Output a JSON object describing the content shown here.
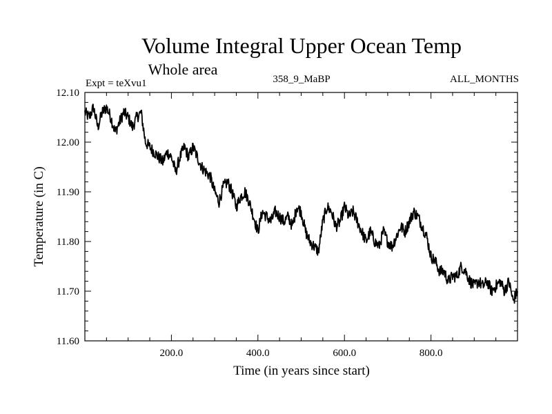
{
  "chart_data": {
    "type": "line",
    "title": "Volume Integral Upper Ocean Temp",
    "subtitle": "Whole area",
    "expt_label": "Expt = teXvu1",
    "run_label": "358_9_MaBP",
    "months_label": "ALL_MONTHS",
    "xlabel": "Time (in years since start)",
    "ylabel": "Temperature (in C)",
    "xlim": [
      0,
      1000
    ],
    "ylim": [
      11.6,
      12.1
    ],
    "xticks": [
      200,
      400,
      600,
      800
    ],
    "xtick_labels": [
      "200.0",
      "400.0",
      "600.0",
      "800.0"
    ],
    "yticks": [
      11.6,
      11.7,
      11.8,
      11.9,
      12.0,
      12.1
    ],
    "ytick_labels": [
      "11.60",
      "11.70",
      "11.80",
      "11.90",
      "12.00",
      "12.10"
    ],
    "grid": false,
    "series": [
      {
        "name": "Volume integral upper ocean temperature",
        "color": "#000000",
        "x": [
          0,
          10,
          20,
          30,
          40,
          50,
          60,
          70,
          80,
          90,
          100,
          110,
          120,
          130,
          140,
          150,
          160,
          170,
          180,
          190,
          200,
          210,
          220,
          230,
          240,
          250,
          260,
          270,
          280,
          290,
          300,
          310,
          320,
          330,
          340,
          350,
          360,
          370,
          380,
          390,
          400,
          410,
          420,
          430,
          440,
          450,
          460,
          470,
          480,
          490,
          500,
          510,
          520,
          530,
          540,
          550,
          560,
          570,
          580,
          590,
          600,
          610,
          620,
          630,
          640,
          650,
          660,
          670,
          680,
          690,
          700,
          710,
          720,
          730,
          740,
          750,
          760,
          770,
          780,
          790,
          800,
          810,
          820,
          830,
          840,
          850,
          860,
          870,
          880,
          890,
          900,
          910,
          920,
          930,
          940,
          950,
          960,
          970,
          980,
          990,
          1000
        ],
        "values": [
          12.06,
          12.05,
          12.07,
          12.03,
          12.06,
          12.07,
          12.05,
          12.02,
          12.04,
          12.06,
          12.05,
          12.03,
          12.05,
          12.06,
          12.0,
          11.99,
          11.98,
          11.97,
          11.96,
          11.98,
          11.97,
          11.94,
          11.97,
          11.99,
          11.97,
          11.99,
          11.97,
          11.95,
          11.94,
          11.93,
          11.9,
          11.88,
          11.91,
          11.92,
          11.9,
          11.87,
          11.89,
          11.9,
          11.88,
          11.85,
          11.82,
          11.86,
          11.85,
          11.84,
          11.86,
          11.85,
          11.84,
          11.85,
          11.83,
          11.87,
          11.86,
          11.82,
          11.8,
          11.79,
          11.78,
          11.84,
          11.87,
          11.86,
          11.83,
          11.84,
          11.87,
          11.85,
          11.86,
          11.84,
          11.82,
          11.8,
          11.82,
          11.8,
          11.79,
          11.82,
          11.8,
          11.79,
          11.81,
          11.83,
          11.82,
          11.84,
          11.86,
          11.85,
          11.83,
          11.81,
          11.77,
          11.76,
          11.74,
          11.74,
          11.72,
          11.73,
          11.73,
          11.75,
          11.74,
          11.72,
          11.71,
          11.72,
          11.71,
          11.72,
          11.7,
          11.71,
          11.72,
          11.7,
          11.72,
          11.68,
          11.7
        ]
      }
    ]
  }
}
